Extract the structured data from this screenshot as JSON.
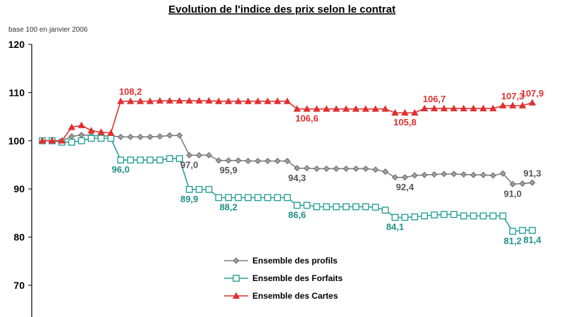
{
  "chart_data": {
    "type": "line",
    "title": "Evolution de l'indice des prix selon le contrat",
    "subtitle": "base 100 en janvier 2006",
    "xlabel": "",
    "ylabel": "",
    "ylim": [
      65,
      120
    ],
    "yticks": [
      70,
      80,
      90,
      100,
      110,
      120
    ],
    "grid": false,
    "legend_position": "bottom-center",
    "series": [
      {
        "name": "Ensemble des profils",
        "color": "#808080",
        "marker": "diamond",
        "values": [
          100,
          100,
          100,
          100.9,
          101.2,
          101.1,
          101,
          101,
          100.8,
          100.8,
          100.8,
          100.8,
          100.9,
          101.1,
          101.1,
          97.0,
          97.0,
          97.0,
          95.9,
          95.9,
          95.9,
          95.8,
          95.8,
          95.8,
          95.8,
          95.8,
          94.3,
          94.3,
          94.2,
          94.2,
          94.2,
          94.2,
          94.2,
          94.2,
          94.0,
          93.6,
          92.4,
          92.4,
          92.8,
          92.9,
          93.0,
          93.1,
          93.1,
          93.0,
          92.9,
          92.9,
          92.8,
          93.2,
          91.0,
          91.1,
          91.3
        ]
      },
      {
        "name": "Ensemble des Forfaits",
        "color": "#2aa198",
        "marker": "square",
        "values": [
          100,
          100,
          99.7,
          99.7,
          100,
          100.5,
          100.5,
          100.5,
          96.0,
          96.0,
          96.0,
          96.0,
          96.0,
          96.3,
          96.3,
          89.9,
          89.9,
          89.9,
          88.2,
          88.2,
          88.2,
          88.2,
          88.2,
          88.2,
          88.2,
          88.2,
          86.6,
          86.6,
          86.3,
          86.3,
          86.3,
          86.3,
          86.3,
          86.3,
          86.2,
          85.6,
          84.1,
          84.1,
          84.2,
          84.4,
          84.6,
          84.7,
          84.7,
          84.4,
          84.4,
          84.4,
          84.4,
          84.4,
          81.2,
          81.4,
          81.4
        ]
      },
      {
        "name": "Ensemble des Cartes",
        "color": "#e03030",
        "marker": "triangle",
        "values": [
          100,
          100,
          100,
          102.8,
          103.2,
          102.1,
          101.8,
          101.6,
          108.2,
          108.2,
          108.2,
          108.2,
          108.3,
          108.3,
          108.3,
          108.3,
          108.3,
          108.3,
          108.2,
          108.2,
          108.2,
          108.2,
          108.2,
          108.2,
          108.2,
          108.2,
          106.6,
          106.6,
          106.6,
          106.6,
          106.6,
          106.6,
          106.6,
          106.6,
          106.6,
          106.6,
          105.8,
          105.8,
          105.8,
          106.7,
          106.7,
          106.7,
          106.7,
          106.7,
          106.7,
          106.7,
          106.7,
          107.3,
          107.3,
          107.3,
          107.9
        ]
      }
    ],
    "annotations": [
      {
        "series": 0,
        "index": 15,
        "text": "97,0",
        "pos": "below"
      },
      {
        "series": 0,
        "index": 19,
        "text": "95,9",
        "pos": "below"
      },
      {
        "series": 0,
        "index": 26,
        "text": "94,3",
        "pos": "below"
      },
      {
        "series": 0,
        "index": 37,
        "text": "92,4",
        "pos": "below"
      },
      {
        "series": 0,
        "index": 48,
        "text": "91,0",
        "pos": "below"
      },
      {
        "series": 0,
        "index": 50,
        "text": "91,3",
        "pos": "above"
      },
      {
        "series": 1,
        "index": 8,
        "text": "96,0",
        "pos": "below"
      },
      {
        "series": 1,
        "index": 15,
        "text": "89,9",
        "pos": "below"
      },
      {
        "series": 1,
        "index": 19,
        "text": "88,2",
        "pos": "below"
      },
      {
        "series": 1,
        "index": 26,
        "text": "86,6",
        "pos": "below"
      },
      {
        "series": 1,
        "index": 36,
        "text": "84,1",
        "pos": "below"
      },
      {
        "series": 1,
        "index": 48,
        "text": "81,2",
        "pos": "below"
      },
      {
        "series": 1,
        "index": 50,
        "text": "81,4",
        "pos": "below"
      },
      {
        "series": 2,
        "index": 9,
        "text": "108,2",
        "pos": "above"
      },
      {
        "series": 2,
        "index": 27,
        "text": "106,6",
        "pos": "below"
      },
      {
        "series": 2,
        "index": 37,
        "text": "105,8",
        "pos": "below"
      },
      {
        "series": 2,
        "index": 40,
        "text": "106,7",
        "pos": "above"
      },
      {
        "series": 2,
        "index": 48,
        "text": "107,3",
        "pos": "above"
      },
      {
        "series": 2,
        "index": 50,
        "text": "107,9",
        "pos": "above"
      }
    ]
  }
}
